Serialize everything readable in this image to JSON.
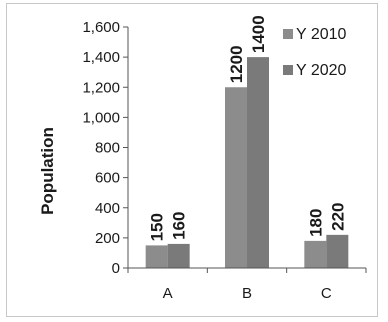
{
  "chart_data": {
    "type": "bar",
    "categories": [
      "A",
      "B",
      "C"
    ],
    "series": [
      {
        "name": "Y 2010",
        "values": [
          150,
          1200,
          180
        ],
        "color": "#8c8c8c"
      },
      {
        "name": "Y 2020",
        "values": [
          160,
          1400,
          220
        ],
        "color": "#7a7a7a"
      }
    ],
    "ylabel": "Population",
    "xlabel": "",
    "ylim": [
      0,
      1600
    ],
    "yticks": [
      0,
      200,
      400,
      600,
      800,
      1000,
      1200,
      1400,
      1600
    ],
    "ytick_labels": [
      "0",
      "200",
      "400",
      "600",
      "800",
      "1,000",
      "1,200",
      "1,400",
      "1,600"
    ],
    "data_labels": [
      [
        "150",
        "1200",
        "180"
      ],
      [
        "160",
        "1400",
        "220"
      ]
    ],
    "grid": false,
    "legend_position": "top-right"
  }
}
